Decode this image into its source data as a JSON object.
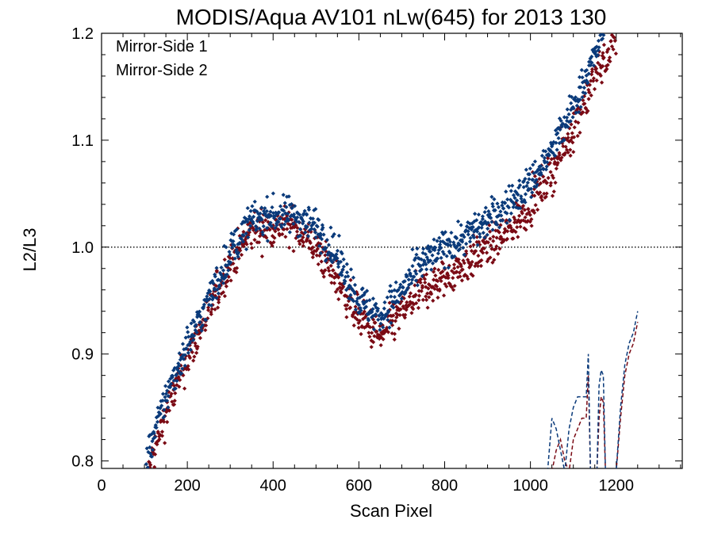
{
  "chart_data": {
    "type": "scatter",
    "title": "MODIS/Aqua AV101 nLw(645) for 2013 130",
    "xlabel": "Scan Pixel",
    "ylabel": "L2/L3",
    "xlim": [
      0,
      1354
    ],
    "ylim": [
      0.793,
      1.2
    ],
    "xticks": [
      0,
      200,
      400,
      600,
      800,
      1000,
      1200
    ],
    "xtick_labels": [
      "0",
      "200",
      "400",
      "600",
      "800",
      "1000",
      "1200"
    ],
    "yticks": [
      0.8,
      0.9,
      1.0,
      1.1,
      1.2
    ],
    "ytick_labels": [
      "0.8",
      "0.9",
      "1.0",
      "1.1",
      "1.2"
    ],
    "x_minor_step": 50,
    "y_minor_step": 0.02,
    "reference_line": {
      "y": 1.0,
      "style": "dotted"
    },
    "legend": {
      "placement": "top-left",
      "entries": [
        "Mirror-Side 1",
        "Mirror-Side 2"
      ]
    },
    "grid": false,
    "series": [
      {
        "name": "Mirror-Side 1",
        "color": "#0a3a7a",
        "marker": "diamond",
        "trend_x": [
          105,
          150,
          200,
          250,
          300,
          350,
          400,
          450,
          500,
          550,
          600,
          650,
          700,
          750,
          800,
          850,
          900,
          950,
          1000,
          1050,
          1100,
          1150,
          1170
        ],
        "trend_y": [
          0.8,
          0.86,
          0.91,
          0.95,
          0.995,
          1.025,
          1.03,
          1.03,
          1.02,
          0.99,
          0.95,
          0.935,
          0.96,
          0.985,
          1.0,
          1.01,
          1.025,
          1.04,
          1.06,
          1.09,
          1.13,
          1.18,
          1.205
        ],
        "scatter_spread": 0.012,
        "dashed_segment_x": [
          1040,
          1050,
          1060,
          1070,
          1080,
          1090,
          1100,
          1110,
          1120,
          1130,
          1135,
          1140,
          1145,
          1150,
          1155,
          1160,
          1165,
          1170,
          1175,
          1180,
          1185,
          1190,
          1195,
          1200,
          1210,
          1220,
          1230,
          1240,
          1250
        ],
        "dashed_segment_y": [
          0.79,
          0.84,
          0.83,
          0.81,
          0.79,
          0.83,
          0.85,
          0.86,
          0.86,
          0.86,
          0.9,
          0.79,
          0.79,
          0.79,
          0.79,
          0.87,
          0.885,
          0.88,
          0.79,
          0.79,
          0.79,
          0.79,
          0.79,
          0.79,
          0.85,
          0.89,
          0.91,
          0.92,
          0.94
        ]
      },
      {
        "name": "Mirror-Side 2",
        "color": "#7a0a14",
        "marker": "diamond",
        "trend_x": [
          110,
          150,
          200,
          250,
          300,
          350,
          400,
          450,
          500,
          550,
          600,
          650,
          700,
          750,
          800,
          850,
          900,
          950,
          1000,
          1050,
          1100,
          1150,
          1200
        ],
        "trend_y": [
          0.79,
          0.845,
          0.895,
          0.94,
          0.985,
          1.015,
          1.02,
          1.02,
          1.0,
          0.97,
          0.935,
          0.915,
          0.94,
          0.96,
          0.97,
          0.985,
          1.0,
          1.015,
          1.04,
          1.07,
          1.11,
          1.16,
          1.195
        ],
        "scatter_spread": 0.013,
        "dashed_segment_x": [
          1050,
          1060,
          1070,
          1080,
          1090,
          1100,
          1110,
          1120,
          1130,
          1135,
          1140,
          1145,
          1150,
          1155,
          1160,
          1165,
          1170,
          1175,
          1180,
          1185,
          1190,
          1195,
          1200,
          1210,
          1220,
          1230,
          1240,
          1250
        ],
        "dashed_segment_y": [
          0.79,
          0.81,
          0.82,
          0.8,
          0.79,
          0.82,
          0.83,
          0.84,
          0.84,
          0.88,
          0.79,
          0.79,
          0.79,
          0.79,
          0.84,
          0.86,
          0.855,
          0.79,
          0.79,
          0.79,
          0.79,
          0.79,
          0.79,
          0.84,
          0.88,
          0.9,
          0.91,
          0.93
        ]
      }
    ]
  }
}
